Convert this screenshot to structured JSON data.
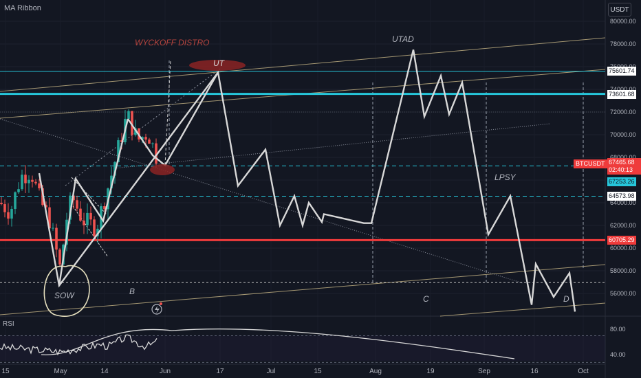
{
  "indicator_title": "MA Ribbon",
  "currency_button": "USDT",
  "rsi_title": "RSI",
  "symbol_tag": "BTCUSDT",
  "colors": {
    "background": "#131722",
    "up": "#26a69a",
    "down": "#ef5350",
    "cyan": "#26c6da",
    "red_line": "#ef3b3b",
    "path": "#d8d8d8",
    "channel": "#c9b787"
  },
  "annotations": {
    "wyckoff": "WYCKOFF DISTRO",
    "ut": "UT",
    "utad": "UTAD",
    "lpsy": "LPSY",
    "sow": "SOW",
    "b": "B",
    "c": "C",
    "d": "D"
  },
  "chart_data": {
    "type": "candlestick",
    "y_axis_ticks": [
      "80000.00",
      "78000.00",
      "76000.00",
      "74000.00",
      "72000.00",
      "70000.00",
      "68000.00",
      "66000.00",
      "64000.00",
      "62000.00",
      "60000.00",
      "58000.00",
      "56000.00"
    ],
    "y_range": [
      54000,
      81000
    ],
    "x_axis_ticks": [
      "15",
      "May",
      "14",
      "Jun",
      "17",
      "Jul",
      "15",
      "Aug",
      "19",
      "Sep",
      "16",
      "Oct"
    ],
    "price_labels": {
      "line_75601": "75601.74",
      "line_73601": "73601.68",
      "current_price": "67465.68",
      "countdown": "02:40:13",
      "line_67253": "67253.26",
      "line_64573": "64573.98",
      "line_60705": "60705.29"
    },
    "horizontal_levels": [
      {
        "price": 75601.74,
        "style": "solid",
        "color": "cyan"
      },
      {
        "price": 73601.68,
        "style": "solid-thick",
        "color": "cyan"
      },
      {
        "price": 67253.26,
        "style": "dashed",
        "color": "cyan"
      },
      {
        "price": 64573.98,
        "style": "dashed",
        "color": "cyan"
      },
      {
        "price": 60705.29,
        "style": "solid-thick",
        "color": "red"
      }
    ],
    "projection_path": [
      [
        56700,
        "May"
      ],
      [
        75500,
        "Jun+"
      ],
      [
        65500,
        "Jun+"
      ],
      [
        68700,
        "Jun+"
      ],
      [
        62000,
        "Jul"
      ],
      [
        64600,
        "Jul"
      ],
      [
        62000,
        "Jul"
      ],
      [
        64000,
        "Jul"
      ],
      [
        62300,
        "Jul+"
      ],
      [
        63000,
        "Jul+"
      ],
      [
        62200,
        "Aug"
      ],
      [
        77500,
        "Aug+"
      ],
      [
        71600,
        "Aug+"
      ],
      [
        75200,
        "Aug+"
      ],
      [
        71800,
        "Aug+"
      ],
      [
        74600,
        "Aug+"
      ],
      [
        61200,
        "Sep"
      ],
      [
        64600,
        "Sep"
      ],
      [
        55000,
        "Sep+"
      ],
      [
        58600,
        "Sep+"
      ],
      [
        55700,
        "Sep+"
      ],
      [
        57800,
        "Sep+"
      ],
      [
        54400,
        "Oct"
      ]
    ],
    "rsi": {
      "y_ticks": [
        "80.00",
        "40.00"
      ],
      "y_range": [
        25,
        90
      ]
    }
  }
}
